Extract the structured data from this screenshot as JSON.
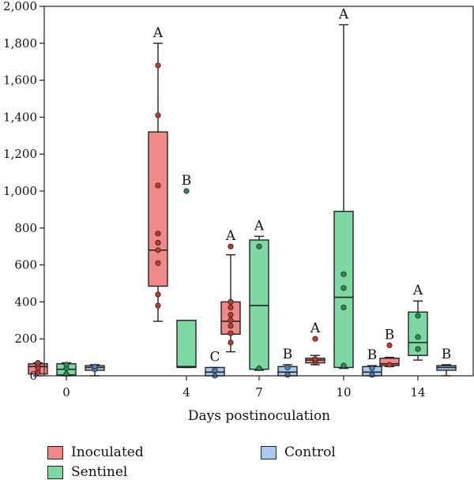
{
  "chart_data": {
    "type": "box",
    "xlabel": "Days postinoculation",
    "ylabel": "",
    "ylim": [
      0,
      2000
    ],
    "yticks": [
      "0",
      "200",
      "400",
      "600",
      "800",
      "1,000",
      "1,200",
      "1,400",
      "1,600",
      "1,800",
      "2,000"
    ],
    "categories": [
      "0",
      "4",
      "7",
      "10",
      "14"
    ],
    "series": [
      {
        "name": "Inoculated",
        "color": "#f08a8a",
        "point_color": "#c0392b",
        "boxes": [
          {
            "whisker_low": 0,
            "q1": 10,
            "median": 50,
            "q3": 65,
            "whisker_high": 70,
            "points": [
              20,
              40,
              60,
              70
            ],
            "letter": ""
          },
          {
            "whisker_low": 295,
            "q1": 485,
            "median": 680,
            "q3": 1320,
            "whisker_high": 1800,
            "points": [
              380,
              440,
              610,
              680,
              720,
              770,
              1030,
              1410,
              1680
            ],
            "letter": "A"
          },
          {
            "whisker_low": 130,
            "q1": 225,
            "median": 295,
            "q3": 400,
            "whisker_high": 655,
            "points": [
              180,
              230,
              270,
              300,
              330,
              370,
              400,
              700
            ],
            "letter": "A"
          },
          {
            "whisker_low": 60,
            "q1": 70,
            "median": 85,
            "q3": 95,
            "whisker_high": 110,
            "points": [
              75,
              90,
              200
            ],
            "letter": "A"
          },
          {
            "whisker_low": 50,
            "q1": 55,
            "median": 65,
            "q3": 95,
            "whisker_high": 100,
            "points": [
              60,
              165
            ],
            "letter": "B"
          }
        ]
      },
      {
        "name": "Sentinel",
        "color": "#7dd8a4",
        "point_color": "#2e8b57",
        "boxes": [
          {
            "whisker_low": 0,
            "q1": 5,
            "median": 35,
            "q3": 65,
            "whisker_high": 70,
            "points": [
              10,
              40,
              60
            ],
            "letter": ""
          },
          {
            "whisker_low": 45,
            "q1": 45,
            "median": 50,
            "q3": 300,
            "whisker_high": 300,
            "points": [
              1000
            ],
            "letter": "B"
          },
          {
            "whisker_low": 30,
            "q1": 35,
            "median": 380,
            "q3": 735,
            "whisker_high": 755,
            "points": [
              40,
              700
            ],
            "letter": "A"
          },
          {
            "whisker_low": 40,
            "q1": 45,
            "median": 425,
            "q3": 890,
            "whisker_high": 1900,
            "points": [
              55,
              370,
              475,
              550
            ],
            "letter": "A"
          },
          {
            "whisker_low": 85,
            "q1": 110,
            "median": 180,
            "q3": 345,
            "whisker_high": 405,
            "points": [
              145,
              210,
              325
            ],
            "letter": "A"
          }
        ]
      },
      {
        "name": "Control",
        "color": "#a9c9ec",
        "point_color": "#4f7fb5",
        "boxes": [
          {
            "whisker_low": 0,
            "q1": 30,
            "median": 45,
            "q3": 55,
            "whisker_high": 60,
            "points": [
              35,
              50
            ],
            "letter": ""
          },
          {
            "whisker_low": 0,
            "q1": 0,
            "median": 20,
            "q3": 45,
            "whisker_high": 45,
            "points": [
              0,
              30
            ],
            "letter": "C"
          },
          {
            "whisker_low": 0,
            "q1": 0,
            "median": 20,
            "q3": 50,
            "whisker_high": 60,
            "points": [
              5,
              45
            ],
            "letter": "B"
          },
          {
            "whisker_low": 0,
            "q1": 0,
            "median": 20,
            "q3": 50,
            "whisker_high": 55,
            "points": [
              5,
              40
            ],
            "letter": "B"
          },
          {
            "whisker_low": 0,
            "q1": 30,
            "median": 45,
            "q3": 55,
            "whisker_high": 60,
            "points": [],
            "letter": "B"
          }
        ]
      }
    ],
    "legend": {
      "position": "bottom-left"
    }
  }
}
